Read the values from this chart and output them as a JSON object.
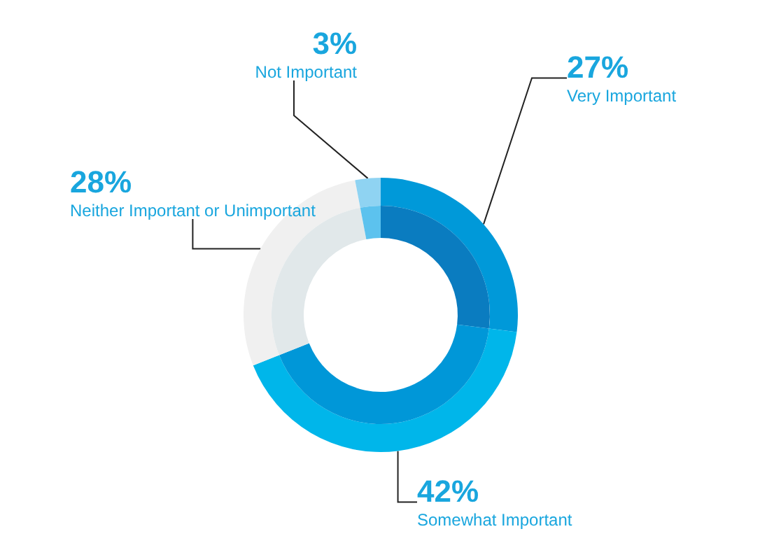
{
  "chart_data": {
    "type": "donut",
    "categories": [
      "Very Important",
      "Somewhat Important",
      "Neither Important or Unimportant",
      "Not Important"
    ],
    "value_labels": [
      "27%",
      "42%",
      "28%",
      "3%"
    ],
    "series": [
      {
        "values": [
          27,
          42,
          28,
          3
        ],
        "colors": [
          "#0099d9",
          "#00b6ea",
          "#f0f0f0",
          "#8fd3f2"
        ]
      },
      {
        "values": [
          27,
          42,
          28,
          3
        ],
        "colors": [
          "#0a7cc0",
          "#0097d8",
          "#e1e8ea",
          "#5cc2ee"
        ]
      }
    ],
    "legend": false
  }
}
